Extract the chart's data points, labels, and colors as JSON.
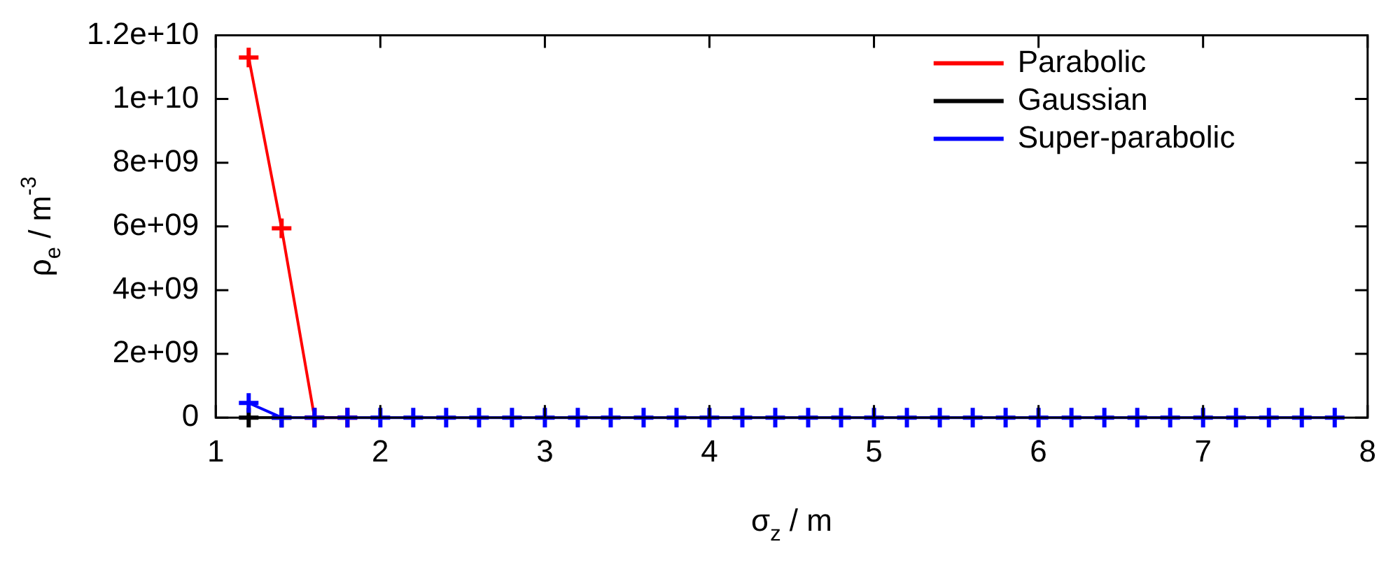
{
  "chart_data": {
    "type": "line",
    "xlabel": "σ$_{z}$ / m",
    "ylabel": "ρ$_{e}$ / m$^{-3}$",
    "x": [
      1.2,
      1.4,
      1.6,
      1.8,
      2.0,
      2.2,
      2.4,
      2.6,
      2.8,
      3.0,
      3.2,
      3.4,
      3.6,
      3.8,
      4.0,
      4.2,
      4.4,
      4.6,
      4.8,
      5.0,
      5.2,
      5.4,
      5.6,
      5.8,
      6.0,
      6.2,
      6.4,
      6.6,
      6.8,
      7.0,
      7.2,
      7.4,
      7.6,
      7.8
    ],
    "series": [
      {
        "name": "Parabolic",
        "color": "#ff0000",
        "marker": "cross",
        "values": [
          11300000000.0,
          5940000000.0,
          0,
          0,
          null,
          null,
          null,
          null,
          null,
          null,
          null,
          null,
          null,
          null,
          null,
          null,
          null,
          null,
          null,
          null,
          null,
          null,
          null,
          null,
          null,
          null,
          null,
          null,
          null,
          null,
          null,
          null,
          null,
          null
        ]
      },
      {
        "name": "Gaussian",
        "color": "#000000",
        "marker": "cross",
        "values": [
          0,
          0,
          null,
          null,
          null,
          null,
          null,
          null,
          null,
          null,
          null,
          null,
          null,
          null,
          null,
          null,
          null,
          null,
          null,
          null,
          null,
          null,
          null,
          null,
          null,
          null,
          null,
          null,
          null,
          null,
          null,
          null,
          null,
          null
        ]
      },
      {
        "name": "Super-parabolic",
        "color": "#0000ff",
        "marker": "cross",
        "values": [
          460000000.0,
          0,
          0,
          0,
          0,
          0,
          0,
          0,
          0,
          0,
          0,
          0,
          0,
          0,
          0,
          0,
          0,
          0,
          0,
          0,
          0,
          0,
          0,
          0,
          0,
          0,
          0,
          0,
          0,
          0,
          0,
          0,
          0,
          0
        ]
      }
    ],
    "xlim": [
      1,
      8
    ],
    "xticks": [
      1,
      2,
      3,
      4,
      5,
      6,
      7,
      8
    ],
    "ylim": [
      0,
      12000000000.0
    ],
    "yticks": [
      0,
      {
        "value": 2000000000.0,
        "label": "2e+09"
      },
      {
        "value": 4000000000.0,
        "label": "4e+09"
      },
      {
        "value": 6000000000.0,
        "label": "6e+09"
      },
      {
        "value": 8000000000.0,
        "label": "8e+09"
      },
      {
        "value": 10000000000.0,
        "label": "1e+10"
      },
      {
        "value": 12000000000.0,
        "label": "1.2e+10"
      }
    ],
    "grid": false,
    "legend": "top right",
    "line_style": "solid"
  }
}
